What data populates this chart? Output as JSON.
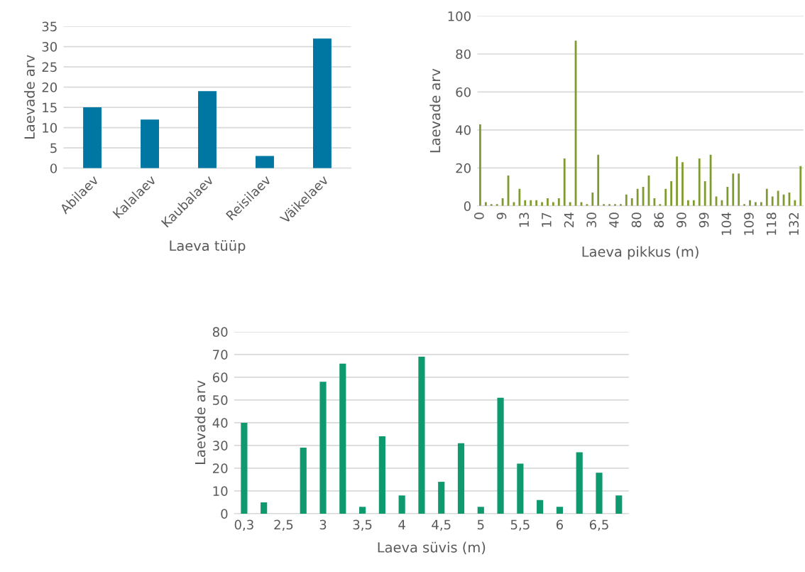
{
  "chart_data": [
    {
      "type": "bar",
      "xlabel": "Laeva tüüp",
      "ylabel": "Laevade arv",
      "categories": [
        "Abilaev",
        "Kalalaev",
        "Kaubalaev",
        "Reisilaev",
        "Väikelaev"
      ],
      "values": [
        15,
        12,
        19,
        3,
        32
      ],
      "color": "#0076a3",
      "ylim": [
        0,
        35
      ],
      "yticks": [
        0,
        5,
        10,
        15,
        20,
        25,
        30,
        35
      ],
      "grid": "y"
    },
    {
      "type": "bar",
      "xlabel": "Laeva pikkus (m)",
      "ylabel": "Laevade arv",
      "categories": [
        "0",
        null,
        null,
        null,
        "9",
        null,
        null,
        null,
        "13",
        null,
        null,
        null,
        "17",
        null,
        null,
        null,
        "24",
        null,
        null,
        null,
        "30",
        null,
        null,
        null,
        "40",
        null,
        null,
        null,
        "80",
        null,
        null,
        null,
        "86",
        null,
        null,
        null,
        "90",
        null,
        null,
        null,
        "99",
        null,
        null,
        null,
        "104",
        null,
        null,
        null,
        "109",
        null,
        null,
        null,
        "118",
        null,
        null,
        null,
        "132",
        null
      ],
      "values": [
        43,
        2,
        1,
        1,
        4,
        16,
        2,
        9,
        3,
        3,
        3,
        2,
        4,
        2,
        4,
        25,
        2,
        87,
        2,
        1,
        7,
        27,
        1,
        1,
        1,
        1,
        6,
        4,
        9,
        10,
        16,
        4,
        1,
        9,
        13,
        26,
        23,
        3,
        3,
        25,
        13,
        27,
        5,
        3,
        10,
        17,
        17,
        1,
        3,
        2,
        2,
        9,
        5,
        8,
        6,
        7,
        3,
        21
      ],
      "color": "#7f9a2e",
      "ylim": [
        0,
        100
      ],
      "yticks": [
        0,
        20,
        40,
        60,
        80,
        100
      ],
      "grid": "y"
    },
    {
      "type": "bar",
      "xlabel": "Laeva süvis (m)",
      "ylabel": "Laevade arv",
      "categories": [
        "0,3",
        null,
        "2,5",
        null,
        "3",
        null,
        "3,5",
        null,
        "4",
        null,
        "4,5",
        null,
        "5",
        null,
        "5,5",
        null,
        "6",
        null,
        "6,5",
        null
      ],
      "values": [
        40,
        5,
        null,
        29,
        58,
        66,
        3,
        34,
        8,
        69,
        14,
        31,
        3,
        51,
        22,
        6,
        3,
        27,
        18,
        8
      ],
      "color": "#0e9a6e",
      "ylim": [
        0,
        80
      ],
      "yticks": [
        0,
        10,
        20,
        30,
        40,
        50,
        60,
        70,
        80
      ],
      "grid": "y"
    }
  ]
}
